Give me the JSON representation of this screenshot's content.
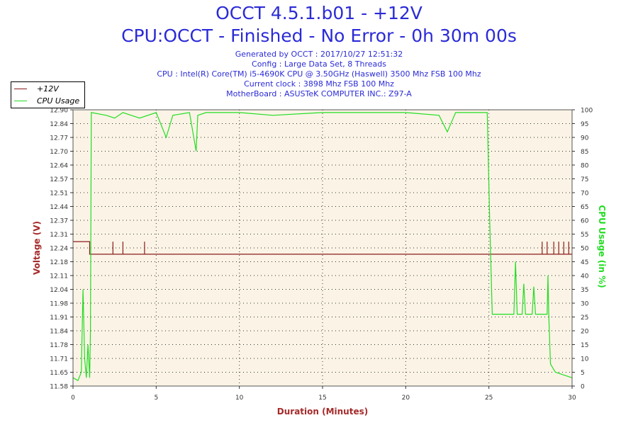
{
  "header": {
    "title": "OCCT 4.5.1.b01 - +12V",
    "subtitle": "CPU:OCCT - Finished - No Error - 0h 30m 00s",
    "generated": "Generated by OCCT : 2017/10/27 12:51:32",
    "config": "Config : Large Data Set, 8 Threads",
    "cpu": "CPU : Intel(R) Core(TM) i5-4690K CPU @ 3.50GHz (Haswell) 3500 Mhz FSB 100 Mhz",
    "clock": "Current clock : 3898 Mhz FSB 100 Mhz",
    "motherboard": "MotherBoard : ASUSTeK COMPUTER INC.: Z97-A"
  },
  "colors": {
    "voltage": "#8b1a1a",
    "cpu_usage": "#22dd22",
    "plot_bg": "#fbf4e6",
    "axis_label_left": "#a52a2a",
    "axis_label_right": "#22dd22"
  },
  "chart_data": {
    "type": "line",
    "xlabel": "Duration (Minutes)",
    "ylabel": "Voltage (V)",
    "ylabel_right": "CPU Usage (in %)",
    "xlim": [
      0,
      30
    ],
    "ylim": [
      11.58,
      12.9
    ],
    "ylim_right": [
      0,
      100
    ],
    "x_ticks": [
      "0",
      "5",
      "10",
      "15",
      "20",
      "25",
      "30"
    ],
    "y_ticks": [
      "11.58",
      "11.65",
      "11.71",
      "11.78",
      "11.84",
      "11.91",
      "11.98",
      "12.04",
      "12.11",
      "12.18",
      "12.24",
      "12.31",
      "12.37",
      "12.44",
      "12.51",
      "12.57",
      "12.64",
      "12.70",
      "12.77",
      "12.84",
      "12.90"
    ],
    "y_ticks_right": [
      "0",
      "5",
      "10",
      "15",
      "20",
      "25",
      "30",
      "35",
      "40",
      "45",
      "50",
      "55",
      "60",
      "65",
      "70",
      "75",
      "80",
      "85",
      "90",
      "95",
      "100"
    ],
    "grid": true,
    "legend_position": "top-left",
    "series": [
      {
        "name": "+12V",
        "axis": "left",
        "x": [
          0,
          1,
          1,
          2.4,
          2.4,
          2.4,
          3,
          3,
          3,
          4.3,
          4.3,
          4.3,
          28.2,
          28.2,
          28.2,
          28.5,
          28.5,
          28.5,
          28.9,
          28.9,
          28.9,
          29.2,
          29.2,
          29.2,
          29.5,
          29.5,
          29.5,
          29.8,
          29.8,
          29.8,
          30
        ],
        "values": [
          12.27,
          12.27,
          12.21,
          12.21,
          12.27,
          12.21,
          12.21,
          12.27,
          12.21,
          12.21,
          12.27,
          12.21,
          12.21,
          12.27,
          12.21,
          12.21,
          12.27,
          12.21,
          12.21,
          12.27,
          12.21,
          12.21,
          12.27,
          12.21,
          12.21,
          12.27,
          12.21,
          12.21,
          12.27,
          12.21,
          12.21
        ]
      },
      {
        "name": "CPU Usage",
        "axis": "right",
        "x": [
          0,
          0.3,
          0.5,
          0.6,
          0.7,
          0.8,
          0.9,
          1.0,
          1.05,
          1.1,
          2.0,
          2.5,
          3.0,
          3.5,
          4.0,
          5.0,
          5.6,
          6.0,
          7.0,
          7.4,
          7.5,
          8.0,
          10.0,
          12.0,
          15.0,
          18.0,
          20.0,
          22.0,
          22.5,
          23.0,
          24.0,
          24.9,
          25.05,
          25.2,
          26.0,
          26.5,
          26.6,
          26.7,
          27.0,
          27.1,
          27.2,
          27.6,
          27.7,
          27.8,
          28.0,
          28.5,
          28.55,
          28.6,
          28.7,
          29.0,
          29.5,
          30.0
        ],
        "values": [
          3,
          2,
          5,
          35,
          10,
          3,
          15,
          3,
          20,
          99,
          98,
          97,
          99,
          98,
          97,
          99,
          90,
          98,
          99,
          85,
          98,
          99,
          99,
          98,
          99,
          99,
          99,
          98,
          92,
          99,
          99,
          99,
          60,
          26,
          26,
          26,
          45,
          26,
          26,
          37,
          26,
          26,
          36,
          26,
          26,
          26,
          40,
          26,
          8,
          5,
          4,
          3
        ]
      }
    ]
  }
}
